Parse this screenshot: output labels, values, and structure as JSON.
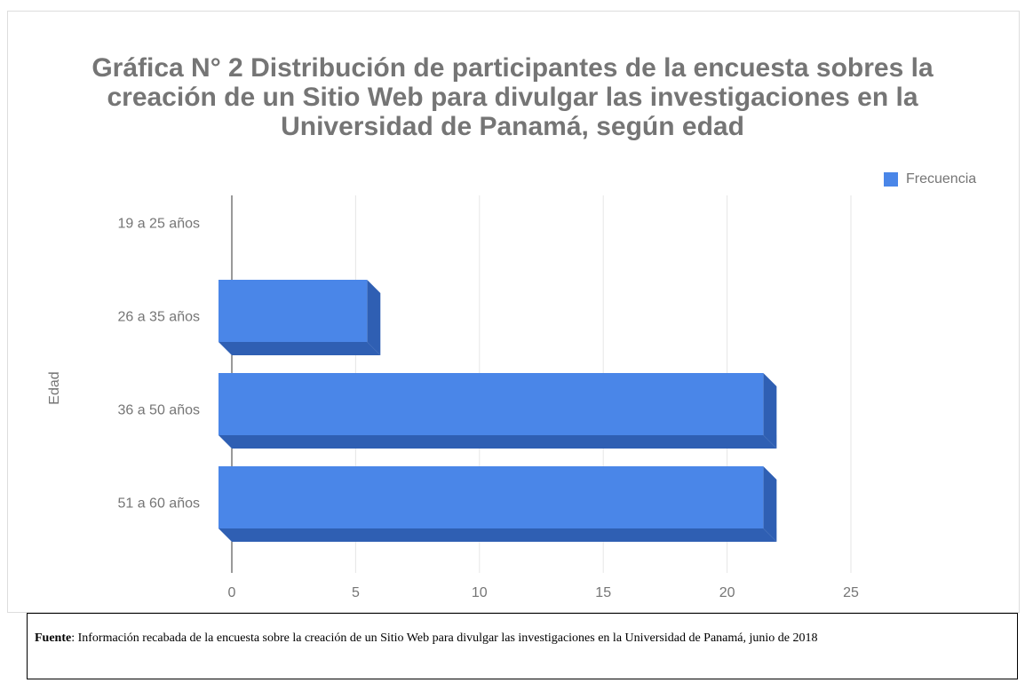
{
  "chart_data": {
    "type": "bar3d",
    "orientation": "horizontal",
    "title": "Gráfica N° 2  Distribución de participantes de la encuesta sobres la creación de un Sitio Web para divulgar las investigaciones en la Universidad de Panamá, según edad",
    "y_label": "Edad",
    "categories": [
      "19 a 25 años",
      "26 a 35 años",
      "36 a 50 años",
      "51 a  60 años"
    ],
    "series": [
      {
        "name": "Frecuencia",
        "color": "#4a86e8",
        "values": [
          0,
          6,
          22,
          22
        ]
      }
    ],
    "xlim": [
      0,
      25
    ],
    "xticks": [
      0,
      5,
      10,
      15,
      20,
      25
    ],
    "grid": true,
    "legend": "top-right"
  },
  "source": {
    "label": "Fuente",
    "text": ": Información recabada de la encuesta sobre la creación de un Sitio Web para divulgar las investigaciones en la Universidad de Panamá, junio de 2018"
  }
}
